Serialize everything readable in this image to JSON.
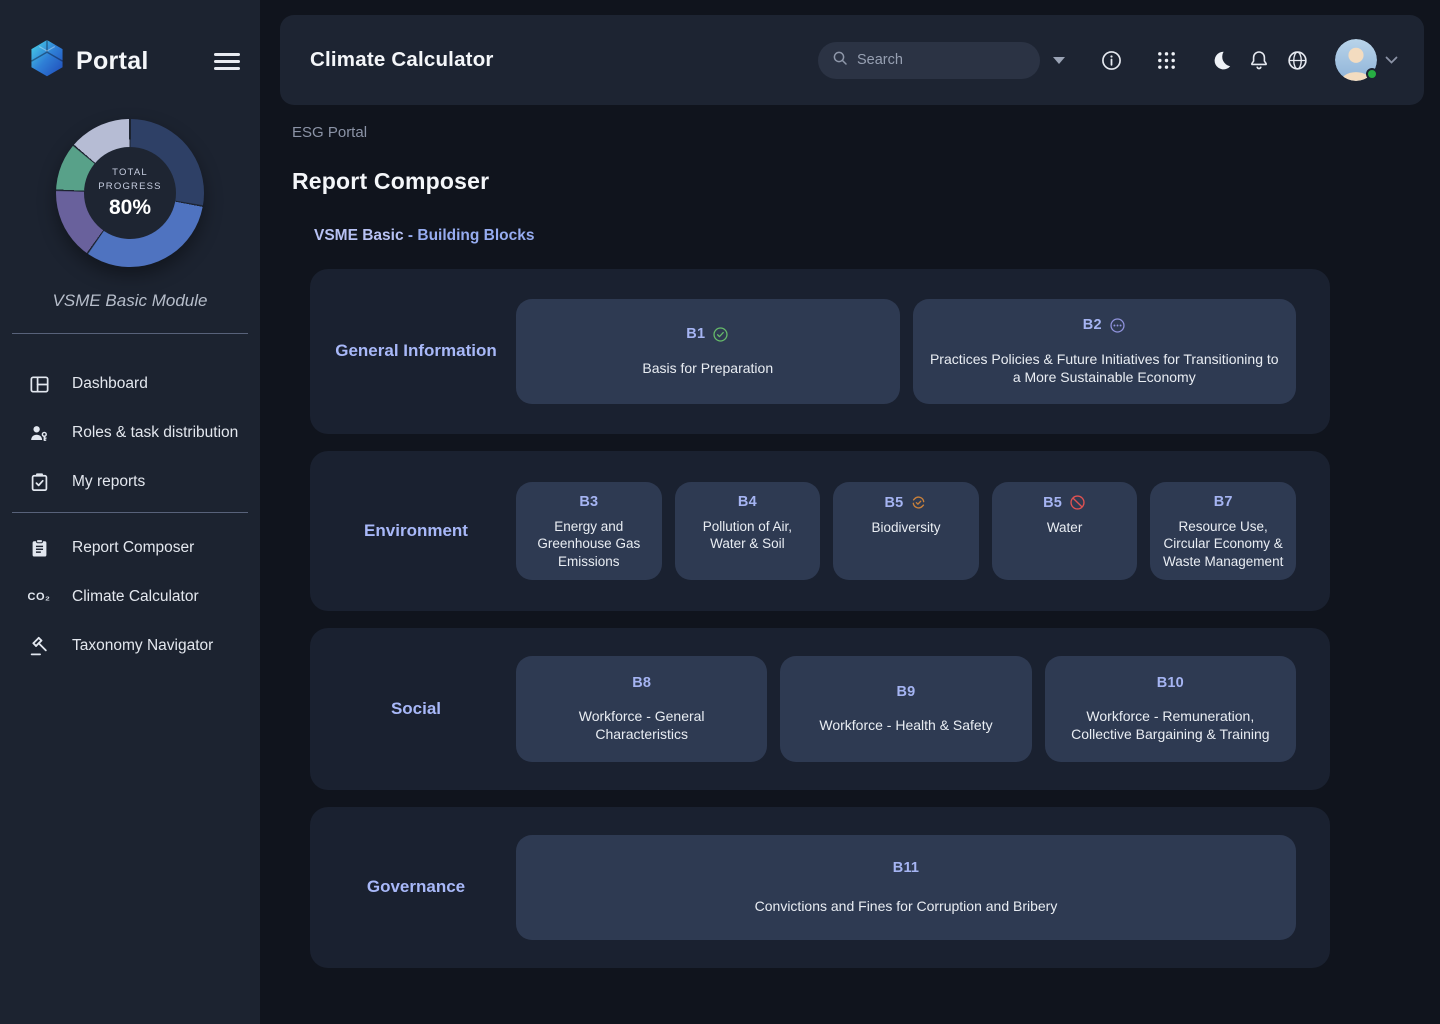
{
  "colors": {
    "accent_periwinkle": "#a5b4f2",
    "status_completed": "#66bb6a",
    "status_pending": "#9093dd",
    "status_in_progress": "#c9803a",
    "status_blocked": "#e05252",
    "presence_online": "#27ae43",
    "ring_segments": [
      {
        "color": "#2e4066",
        "from": 0,
        "to": 100
      },
      {
        "color": "#4f73c0",
        "from": 100,
        "to": 215
      },
      {
        "color": "#69619c",
        "from": 215,
        "to": 272
      },
      {
        "color": "#58a189",
        "from": 272,
        "to": 310
      },
      {
        "color": "#b6bcd4",
        "from": 310,
        "to": 360
      }
    ]
  },
  "sidebar": {
    "brand": "Portal",
    "progress": {
      "label_line1": "TOTAL",
      "label_line2": "PROGRESS",
      "value": "80%"
    },
    "module_label": "VSME Basic Module",
    "items": [
      {
        "icon": "dashboard-icon",
        "label": "Dashboard"
      },
      {
        "icon": "roles-icon",
        "label": "Roles & task distribution"
      },
      {
        "icon": "my-reports-icon",
        "label": "My reports"
      },
      {
        "icon": "report-composer-icon",
        "label": "Report Composer"
      },
      {
        "icon": "co2-icon",
        "label": "Climate Calculator",
        "glyph": "CO₂"
      },
      {
        "icon": "taxonomy-icon",
        "label": "Taxonomy Navigator"
      }
    ]
  },
  "header": {
    "title": "Climate Calculator",
    "search": {
      "placeholder": "Search"
    },
    "icons": [
      "info-icon",
      "apps-grid-icon",
      "moon-icon",
      "bell-icon",
      "globe-icon"
    ],
    "avatar": {
      "status": "online"
    }
  },
  "breadcrumb": "ESG Portal",
  "page_title": "Report Composer",
  "subtitle": {
    "module": "VSME Basic",
    "rest": " - Building Blocks"
  },
  "sections": [
    {
      "label": "General Information",
      "blocks": [
        {
          "code": "B1",
          "status": "completed",
          "title": "Basis for Preparation"
        },
        {
          "code": "B2",
          "status": "pending",
          "title": "Practices Policies & Future Initiatives for Transitioning to a More Sustainable Economy"
        }
      ]
    },
    {
      "label": "Environment",
      "blocks": [
        {
          "code": "B3",
          "status": "none",
          "title": "Energy and Greenhouse Gas Emissions"
        },
        {
          "code": "B4",
          "status": "none",
          "title": "Pollution of Air, Water & Soil"
        },
        {
          "code": "B5",
          "status": "in_progress",
          "title": "Biodiversity"
        },
        {
          "code": "B5",
          "status": "blocked",
          "title": "Water"
        },
        {
          "code": "B7",
          "status": "none",
          "title": "Resource Use, Circular Economy & Waste Management"
        }
      ]
    },
    {
      "label": "Social",
      "blocks": [
        {
          "code": "B8",
          "status": "none",
          "title": "Workforce - General Characteristics"
        },
        {
          "code": "B9",
          "status": "none",
          "title": "Workforce - Health & Safety"
        },
        {
          "code": "B10",
          "status": "none",
          "title": "Workforce - Remuneration, Collective Bargaining & Training"
        }
      ]
    },
    {
      "label": "Governance",
      "blocks": [
        {
          "code": "B11",
          "status": "none",
          "title": "Convictions and Fines for Corruption and Bribery"
        }
      ]
    }
  ]
}
